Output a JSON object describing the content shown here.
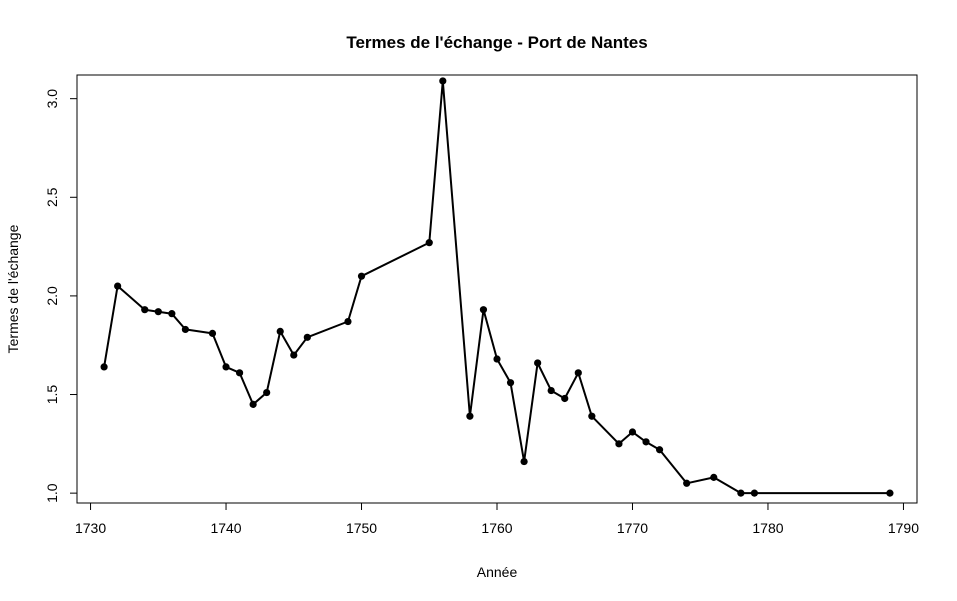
{
  "chart_data": {
    "type": "line",
    "title": "Termes de l'échange - Port de Nantes",
    "xlabel": "Année",
    "ylabel": "Termes de l'échange",
    "xlim": [
      1729,
      1791
    ],
    "ylim": [
      0.95,
      3.12
    ],
    "xticks": [
      1730,
      1740,
      1750,
      1760,
      1770,
      1780,
      1790
    ],
    "yticks": [
      1.0,
      1.5,
      2.0,
      2.5,
      3.0
    ],
    "x_tick_labels": [
      "1730",
      "1740",
      "1750",
      "1760",
      "1770",
      "1780",
      "1790"
    ],
    "y_tick_labels": [
      "1.0",
      "1.5",
      "2.0",
      "2.5",
      "3.0"
    ],
    "grid": false,
    "line_color": "#000000",
    "marker": "filled-circle",
    "x": [
      1731,
      1732,
      1734,
      1735,
      1736,
      1737,
      1739,
      1740,
      1741,
      1742,
      1743,
      1744,
      1745,
      1746,
      1749,
      1750,
      1755,
      1756,
      1758,
      1759,
      1760,
      1761,
      1762,
      1763,
      1764,
      1765,
      1766,
      1767,
      1769,
      1770,
      1771,
      1772,
      1774,
      1776,
      1778,
      1779,
      1789
    ],
    "y": [
      1.64,
      2.05,
      1.93,
      1.92,
      1.91,
      1.83,
      1.81,
      1.64,
      1.61,
      1.45,
      1.51,
      1.82,
      1.7,
      1.79,
      1.87,
      2.1,
      2.27,
      3.09,
      1.39,
      1.93,
      1.68,
      1.56,
      1.16,
      1.66,
      1.52,
      1.48,
      1.61,
      1.39,
      1.25,
      1.31,
      1.26,
      1.22,
      1.05,
      1.08,
      1.0,
      1.0,
      1.0
    ]
  }
}
